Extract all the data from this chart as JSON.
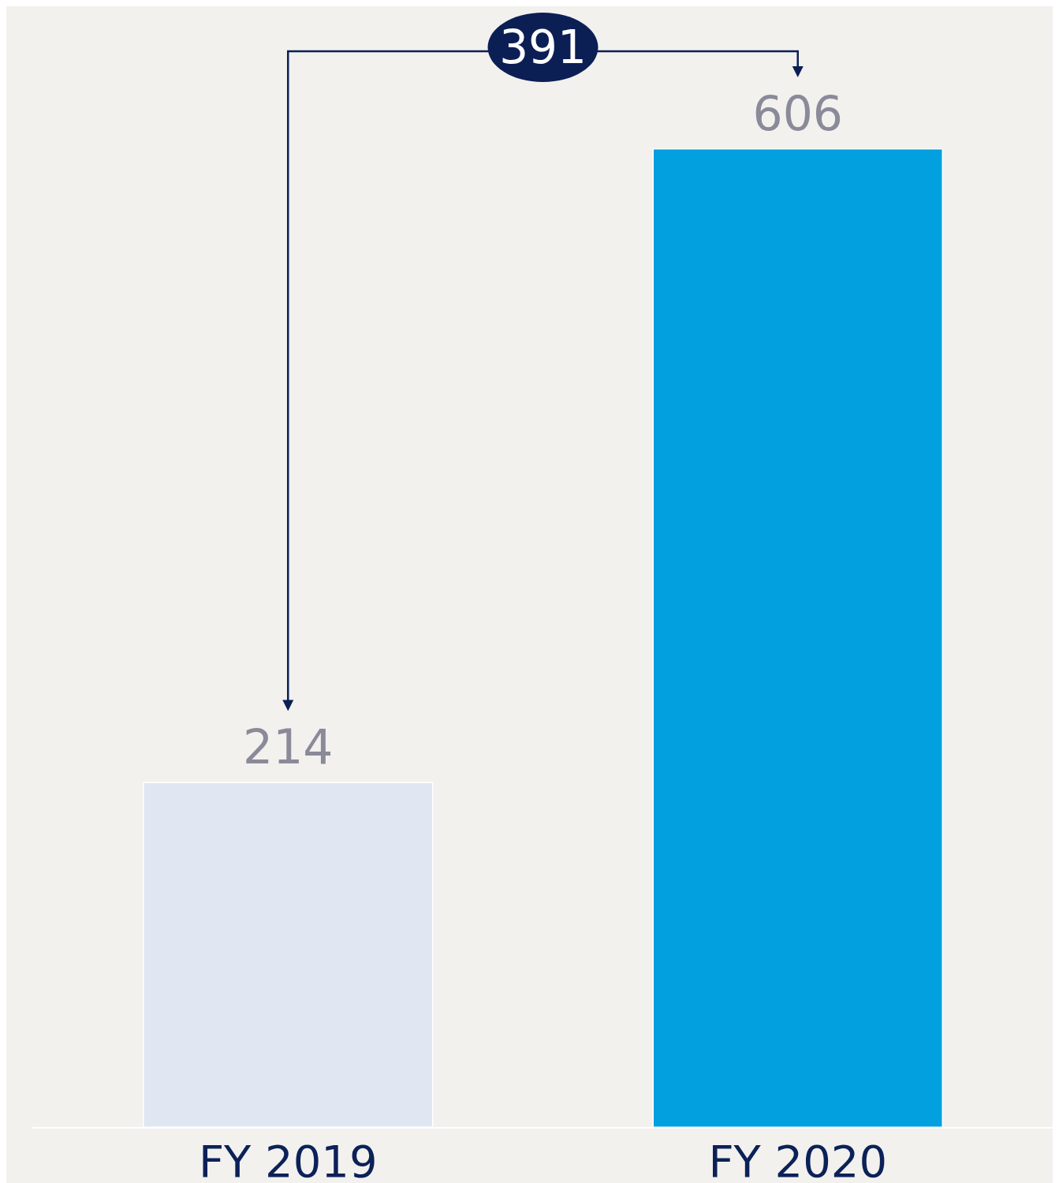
{
  "chart_data": {
    "type": "bar",
    "categories": [
      "FY 2019",
      "FY 2020"
    ],
    "values": [
      214,
      606
    ],
    "colors": [
      "#e1e7f2",
      "#03a0e0"
    ],
    "data_labels": true,
    "tick_labels": "x",
    "annotations": [
      "391"
    ]
  }
}
